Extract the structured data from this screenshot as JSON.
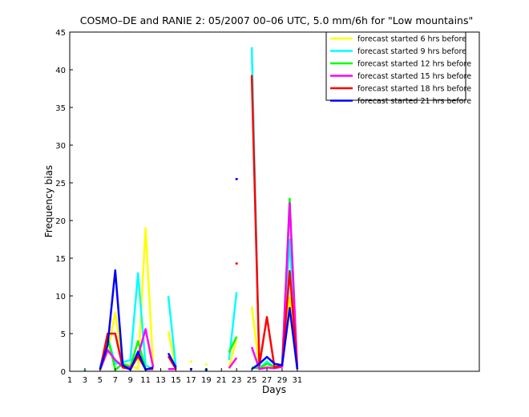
{
  "chart_data": {
    "type": "line",
    "title": "COSMO–DE and RANIE 2: 05/2007 00–06 UTC, 5.0 mm/6h for \"Low mountains\"",
    "xlabel": "Days",
    "ylabel": "Frequency bias",
    "xlim": [
      1,
      55
    ],
    "ylim": [
      0,
      45
    ],
    "x_ticks": [
      1,
      3,
      5,
      7,
      9,
      11,
      13,
      15,
      17,
      19,
      21,
      23,
      25,
      27,
      29,
      31
    ],
    "y_ticks": [
      0,
      5,
      10,
      15,
      20,
      25,
      30,
      35,
      40,
      45
    ],
    "legend_position": "top-right",
    "grid": false,
    "series": [
      {
        "name": "forecast started 6 hrs before",
        "color": "#ffff00",
        "points": [
          [
            1,
            null
          ],
          [
            2,
            null
          ],
          [
            3,
            0.1
          ],
          [
            4,
            null
          ],
          [
            5,
            0.2
          ],
          [
            6,
            2.5
          ],
          [
            7,
            7.8
          ],
          [
            8,
            1.0
          ],
          [
            9,
            0.8
          ],
          [
            10,
            0.3
          ],
          [
            11,
            19.0
          ],
          [
            12,
            0.5
          ],
          [
            13,
            null
          ],
          [
            14,
            5.3
          ],
          [
            15,
            0.3
          ],
          [
            16,
            null
          ],
          [
            17,
            1.3
          ],
          [
            18,
            null
          ],
          [
            19,
            0.9
          ],
          [
            20,
            null
          ],
          [
            21,
            null
          ],
          [
            22,
            0.5
          ],
          [
            23,
            4.3
          ],
          [
            24,
            null
          ],
          [
            25,
            8.6
          ],
          [
            26,
            0.4
          ],
          [
            27,
            0.6
          ],
          [
            28,
            0.4
          ],
          [
            29,
            0.8
          ],
          [
            30,
            9.8
          ],
          [
            31,
            0.3
          ]
        ]
      },
      {
        "name": "forecast started 9 hrs before",
        "color": "#00ffff",
        "points": [
          [
            1,
            null
          ],
          [
            2,
            null
          ],
          [
            3,
            0.1
          ],
          [
            4,
            null
          ],
          [
            5,
            0.5
          ],
          [
            6,
            4.5
          ],
          [
            7,
            1.0
          ],
          [
            8,
            1.2
          ],
          [
            9,
            1.5
          ],
          [
            10,
            13.0
          ],
          [
            11,
            0.8
          ],
          [
            12,
            0.3
          ],
          [
            13,
            null
          ],
          [
            14,
            10.0
          ],
          [
            15,
            0.5
          ],
          [
            16,
            null
          ],
          [
            17,
            null
          ],
          [
            18,
            null
          ],
          [
            19,
            null
          ],
          [
            20,
            null
          ],
          [
            21,
            null
          ],
          [
            22,
            1.5
          ],
          [
            23,
            10.5
          ],
          [
            24,
            null
          ],
          [
            25,
            43.0
          ],
          [
            26,
            0.4
          ],
          [
            27,
            1.3
          ],
          [
            28,
            0.5
          ],
          [
            29,
            0.8
          ],
          [
            30,
            17.5
          ],
          [
            31,
            0.3
          ]
        ]
      },
      {
        "name": "forecast started 12 hrs before",
        "color": "#00ff00",
        "points": [
          [
            1,
            null
          ],
          [
            2,
            null
          ],
          [
            3,
            null
          ],
          [
            4,
            null
          ],
          [
            5,
            0.3
          ],
          [
            6,
            4.6
          ],
          [
            7,
            0.2
          ],
          [
            8,
            1.0
          ],
          [
            9,
            0.6
          ],
          [
            10,
            4.0
          ],
          [
            11,
            0.3
          ],
          [
            12,
            0.3
          ],
          [
            13,
            null
          ],
          [
            14,
            null
          ],
          [
            15,
            null
          ],
          [
            16,
            null
          ],
          [
            17,
            null
          ],
          [
            18,
            null
          ],
          [
            19,
            0.3
          ],
          [
            20,
            null
          ],
          [
            21,
            null
          ],
          [
            22,
            2.5
          ],
          [
            23,
            4.6
          ],
          [
            24,
            null
          ],
          [
            25,
            0.5
          ],
          [
            26,
            0.4
          ],
          [
            27,
            1.0
          ],
          [
            28,
            0.6
          ],
          [
            29,
            0.8
          ],
          [
            30,
            22.9
          ],
          [
            31,
            0.3
          ]
        ]
      },
      {
        "name": "forecast started 15 hrs before",
        "color": "#ff00ff",
        "points": [
          [
            1,
            null
          ],
          [
            2,
            null
          ],
          [
            3,
            null
          ],
          [
            4,
            null
          ],
          [
            5,
            0.2
          ],
          [
            6,
            2.8
          ],
          [
            7,
            1.5
          ],
          [
            8,
            0.6
          ],
          [
            9,
            0.5
          ],
          [
            10,
            2.0
          ],
          [
            11,
            5.6
          ],
          [
            12,
            0.5
          ],
          [
            13,
            null
          ],
          [
            14,
            0.3
          ],
          [
            15,
            0.3
          ],
          [
            16,
            null
          ],
          [
            17,
            null
          ],
          [
            18,
            null
          ],
          [
            19,
            null
          ],
          [
            20,
            null
          ],
          [
            21,
            null
          ],
          [
            22,
            0.4
          ],
          [
            23,
            1.8
          ],
          [
            24,
            null
          ],
          [
            25,
            3.2
          ],
          [
            26,
            0.3
          ],
          [
            27,
            0.5
          ],
          [
            28,
            0.4
          ],
          [
            29,
            0.6
          ],
          [
            30,
            22.3
          ],
          [
            31,
            0.3
          ]
        ]
      },
      {
        "name": "forecast started 18 hrs before",
        "color": "#ff0000",
        "points": [
          [
            1,
            null
          ],
          [
            2,
            null
          ],
          [
            3,
            null
          ],
          [
            4,
            null
          ],
          [
            5,
            0.2
          ],
          [
            6,
            5.0
          ],
          [
            7,
            5.0
          ],
          [
            8,
            0.5
          ],
          [
            9,
            0.3
          ],
          [
            10,
            2.0
          ],
          [
            11,
            0.3
          ],
          [
            12,
            0.3
          ],
          [
            13,
            null
          ],
          [
            14,
            2.0
          ],
          [
            15,
            0.3
          ],
          [
            16,
            null
          ],
          [
            17,
            null
          ],
          [
            18,
            null
          ],
          [
            19,
            null
          ],
          [
            20,
            null
          ],
          [
            21,
            null
          ],
          [
            22,
            null
          ],
          [
            23,
            14.3
          ],
          [
            24,
            null
          ],
          [
            25,
            39.3
          ],
          [
            26,
            0.8
          ],
          [
            27,
            7.2
          ],
          [
            28,
            0.5
          ],
          [
            29,
            0.8
          ],
          [
            30,
            13.3
          ],
          [
            31,
            0.3
          ]
        ]
      },
      {
        "name": "forecast started 21 hrs before",
        "color": "#0000ff",
        "points": [
          [
            1,
            null
          ],
          [
            2,
            null
          ],
          [
            3,
            null
          ],
          [
            4,
            null
          ],
          [
            5,
            0.3
          ],
          [
            6,
            3.5
          ],
          [
            7,
            13.4
          ],
          [
            8,
            0.8
          ],
          [
            9,
            0.2
          ],
          [
            10,
            2.6
          ],
          [
            11,
            0.2
          ],
          [
            12,
            0.5
          ],
          [
            13,
            null
          ],
          [
            14,
            2.4
          ],
          [
            15,
            0.5
          ],
          [
            16,
            null
          ],
          [
            17,
            0.3
          ],
          [
            18,
            null
          ],
          [
            19,
            0.2
          ],
          [
            20,
            null
          ],
          [
            21,
            null
          ],
          [
            22,
            null
          ],
          [
            23,
            25.5
          ],
          [
            24,
            null
          ],
          [
            25,
            0.3
          ],
          [
            26,
            1.0
          ],
          [
            27,
            1.9
          ],
          [
            28,
            1.0
          ],
          [
            29,
            0.8
          ],
          [
            30,
            8.4
          ],
          [
            31,
            0.3
          ]
        ]
      }
    ]
  }
}
